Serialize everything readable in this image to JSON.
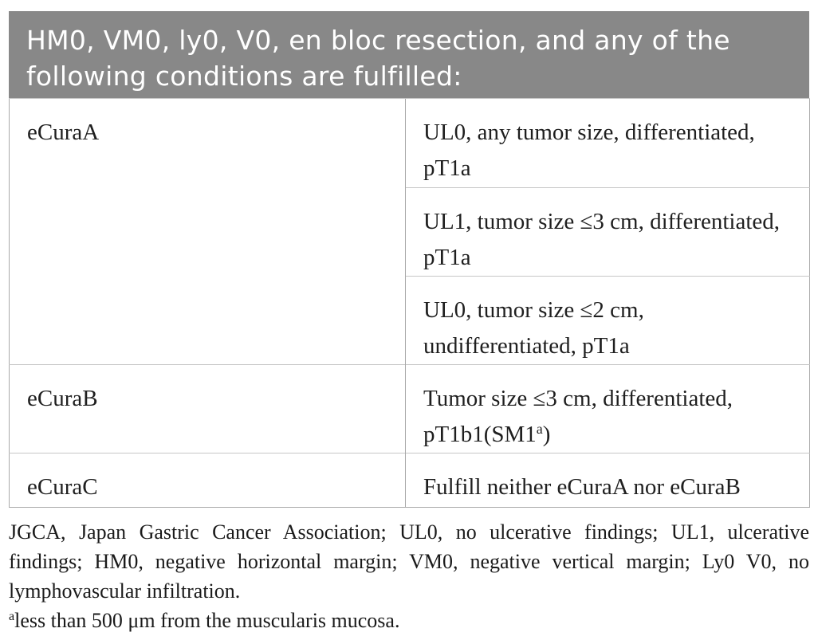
{
  "colors": {
    "header_bg": "#888888",
    "header_text": "#ffffff",
    "border_outer": "#a9a9a9",
    "border_inner": "#c6c6c6",
    "body_text": "#1f1f1f"
  },
  "table": {
    "header_title": "HM0, VM0, ly0, V0, en bloc resection, and any of the\nfollowing conditions are fulfilled:",
    "rows": [
      {
        "label": "eCuraA",
        "conditions": [
          "UL0, any tumor size, differentiated,\npT1a",
          "UL1, tumor size ≤3 cm, differentiated,\npT1a",
          "UL0, tumor size ≤2 cm,\nundifferentiated, pT1a"
        ]
      },
      {
        "label": "eCuraB",
        "condition_prefix": "Tumor size ≤3 cm, differentiated,\npT1b1(SM1",
        "condition_sup": "a",
        "condition_suffix": ")"
      },
      {
        "label": "eCuraC",
        "conditions": [
          "Fulfill neither eCuraA nor eCuraB"
        ]
      }
    ]
  },
  "footnotes": {
    "abbrev_lines": [
      "JGCA, Japan Gastric Cancer Association; UL0, no ulcerative findings; UL1, ulcerative",
      "findings; HM0, negative horizontal margin; VM0, negative vertical margin; Ly0 V0, no",
      "lymphovascular infiltration."
    ],
    "note_a_sup": "a",
    "note_a_text": "less than 500 μm from the muscularis mucosa."
  }
}
